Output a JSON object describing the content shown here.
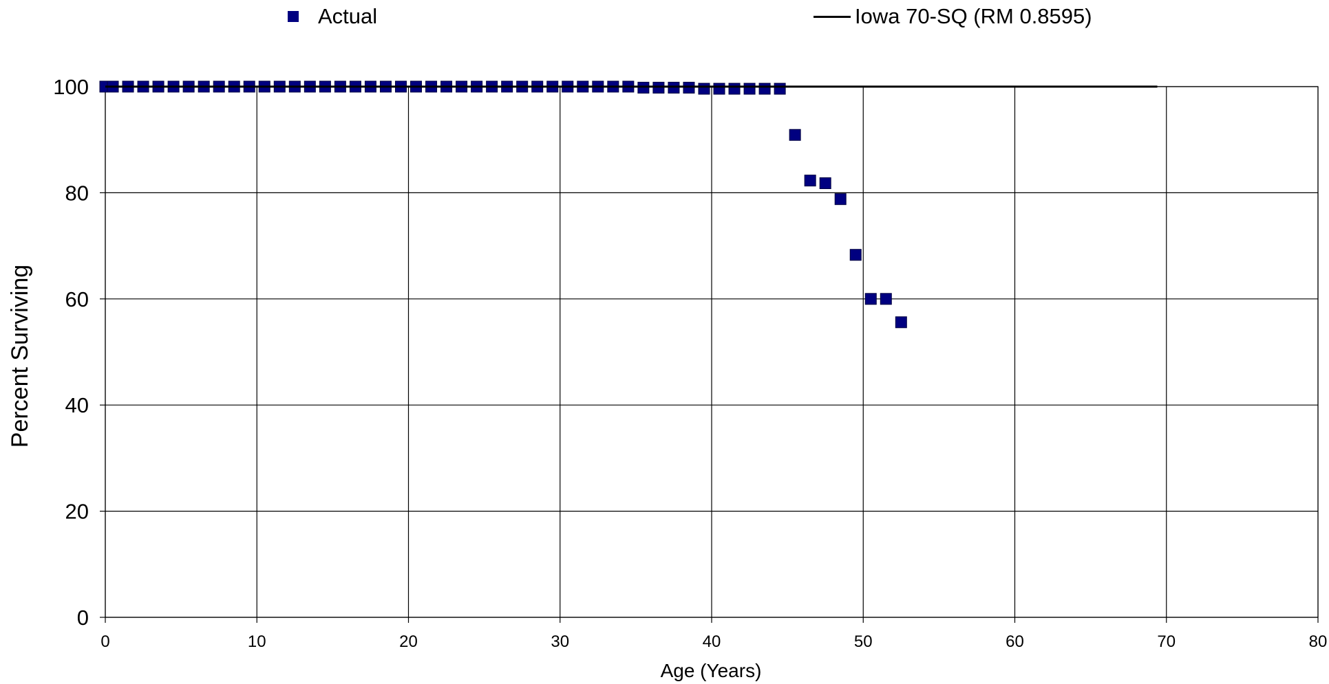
{
  "chart_data": {
    "type": "scatter",
    "xlabel": "Age (Years)",
    "ylabel": "Percent Surviving",
    "xlim": [
      0,
      80
    ],
    "ylim": [
      0,
      100
    ],
    "xticks": [
      0,
      10,
      20,
      30,
      40,
      50,
      60,
      70,
      80
    ],
    "yticks": [
      0,
      20,
      40,
      60,
      80,
      100
    ],
    "grid": true,
    "legend_position": "top",
    "series": [
      {
        "name": "Actual",
        "kind": "scatter",
        "marker": "square",
        "color": "#000080",
        "x": [
          0,
          0.5,
          1.5,
          2.5,
          3.5,
          4.5,
          5.5,
          6.5,
          7.5,
          8.5,
          9.5,
          10.5,
          11.5,
          12.5,
          13.5,
          14.5,
          15.5,
          16.5,
          17.5,
          18.5,
          19.5,
          20.5,
          21.5,
          22.5,
          23.5,
          24.5,
          25.5,
          26.5,
          27.5,
          28.5,
          29.5,
          30.5,
          31.5,
          32.5,
          33.5,
          34.5,
          35.5,
          36.5,
          37.5,
          38.5,
          39.5,
          40.5,
          41.5,
          42.5,
          43.5,
          44.5,
          45.5,
          46.5,
          47.5,
          48.5,
          49.5,
          50.5,
          51.5,
          52.5
        ],
        "y": [
          100,
          100,
          100,
          100,
          100,
          100,
          100,
          100,
          100,
          100,
          100,
          100,
          100,
          100,
          100,
          100,
          100,
          100,
          100,
          100,
          100,
          100,
          100,
          100,
          100,
          100,
          100,
          100,
          100,
          100,
          100,
          100,
          100,
          100,
          100,
          100,
          99.8,
          99.8,
          99.8,
          99.8,
          99.6,
          99.6,
          99.6,
          99.6,
          99.6,
          99.6,
          90.9,
          82.3,
          81.8,
          78.8,
          68.3,
          60.0,
          60.0,
          55.6
        ]
      },
      {
        "name": "Iowa 70-SQ (RM 0.8595)",
        "kind": "line",
        "color": "#000000",
        "x": [
          0,
          69.4
        ],
        "y": [
          100,
          100
        ]
      }
    ]
  },
  "legend": {
    "actual_label": "Actual",
    "iowa_label": "Iowa 70-SQ (RM 0.8595)"
  }
}
